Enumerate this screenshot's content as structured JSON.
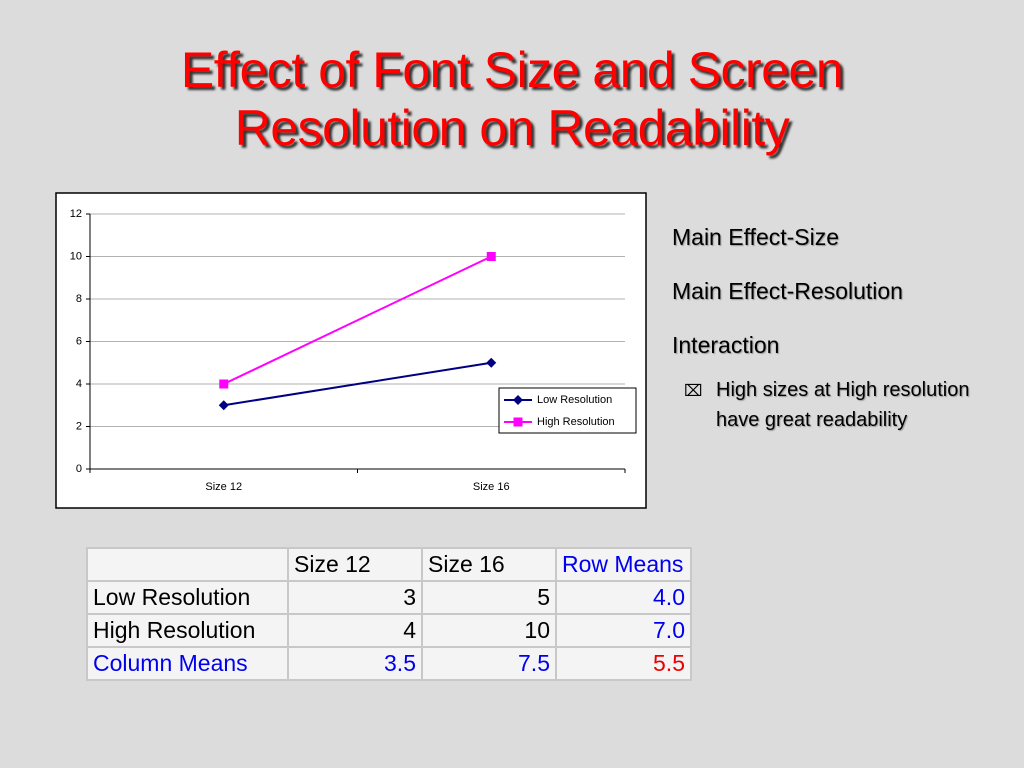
{
  "title": [
    "Effect of Font Size and Screen",
    "Resolution on Readability"
  ],
  "bullets": [
    "Main Effect-Size",
    "Main Effect-Resolution",
    "Interaction"
  ],
  "sub_bullet": [
    "High sizes at High resolution",
    "have great readability"
  ],
  "table": {
    "header": [
      "Size 12",
      "Size 16",
      "Row Means"
    ],
    "rows": [
      [
        "Low Resolution",
        "3",
        "5",
        "4.0"
      ],
      [
        "High Resolution",
        "4",
        "10",
        "7.0"
      ],
      [
        "Column Means",
        "3.5",
        "7.5",
        "5.5"
      ]
    ]
  },
  "chart_data": {
    "type": "line",
    "categories": [
      "Size 12",
      "Size 16"
    ],
    "series": [
      {
        "name": "Low Resolution",
        "color": "#000080",
        "values": [
          3,
          5
        ]
      },
      {
        "name": "High Resolution",
        "color": "#ff00ff",
        "values": [
          4,
          10
        ]
      }
    ],
    "ylim": [
      0,
      12
    ],
    "yticks": [
      0,
      2,
      4,
      6,
      8,
      10,
      12
    ],
    "grid": true,
    "legend": "right"
  }
}
